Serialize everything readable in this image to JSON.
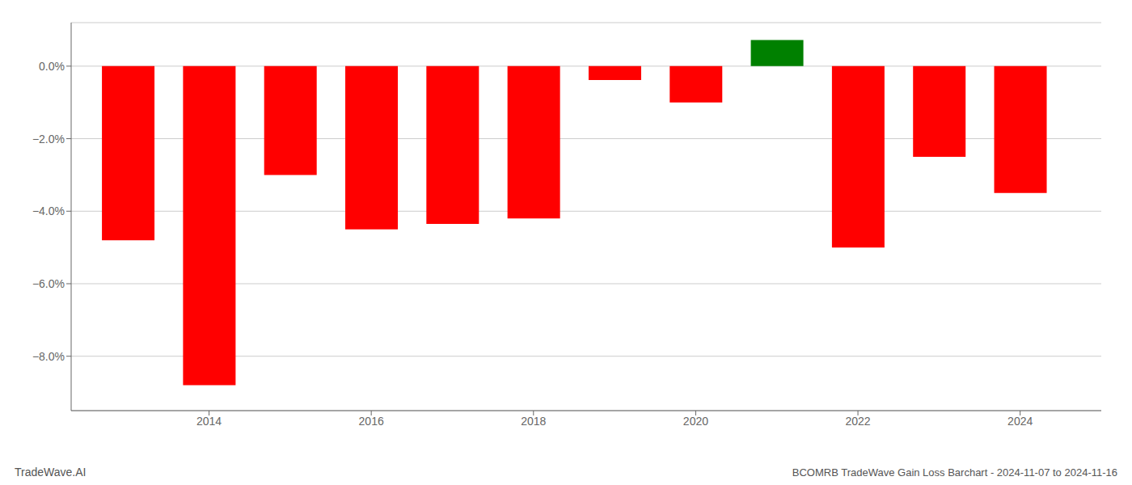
{
  "chart_data": {
    "type": "bar",
    "title": "BCOMRB TradeWave Gain Loss Barchart - 2024-11-07 to 2024-11-16",
    "annotations": [
      "TradeWave.AI"
    ],
    "x": [
      2013,
      2014,
      2015,
      2016,
      2017,
      2018,
      2019,
      2020,
      2021,
      2022,
      2023,
      2024
    ],
    "values": [
      -4.8,
      -8.8,
      -3.0,
      -4.5,
      -4.35,
      -4.2,
      -0.38,
      -1.0,
      0.72,
      -5.0,
      -2.5,
      -3.5
    ],
    "colors": [
      "#ff0000",
      "#ff0000",
      "#ff0000",
      "#ff0000",
      "#ff0000",
      "#ff0000",
      "#ff0000",
      "#ff0000",
      "#008000",
      "#ff0000",
      "#ff0000",
      "#ff0000"
    ],
    "xlim": [
      2012.3,
      2025.0
    ],
    "xticks": [
      2014,
      2016,
      2018,
      2020,
      2022,
      2024
    ],
    "ylim": [
      -9.5,
      1.2
    ],
    "yticks": [
      {
        "value": 0.0,
        "label": "0.0%"
      },
      {
        "value": -2.0,
        "label": "−2.0%"
      },
      {
        "value": -4.0,
        "label": "−4.0%"
      },
      {
        "value": -6.0,
        "label": "−6.0%"
      },
      {
        "value": -8.0,
        "label": "−8.0%"
      }
    ],
    "grid": true
  }
}
